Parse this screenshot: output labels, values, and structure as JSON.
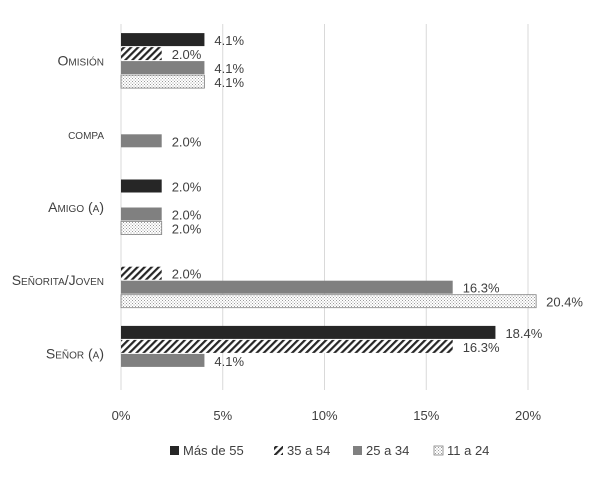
{
  "chart_data": {
    "type": "bar",
    "orientation": "horizontal",
    "title": "",
    "xlabel": "",
    "ylabel": "",
    "categories": [
      "Omisión",
      "compa",
      "Amigo (a)",
      "Señorita/Joven",
      "Señor (a)"
    ],
    "series": [
      {
        "name": "Más de 55",
        "values": [
          4.1,
          null,
          2.0,
          null,
          18.4
        ],
        "labels": [
          "4.1%",
          "",
          "2.0%",
          "",
          "18.4%"
        ],
        "color": "#262626",
        "pattern": "solid"
      },
      {
        "name": "35 a 54",
        "values": [
          2.0,
          null,
          null,
          2.0,
          16.3
        ],
        "labels": [
          "2.0%",
          "",
          "",
          "2.0%",
          "16.3%"
        ],
        "color": "#262626",
        "pattern": "diagonal-hatch"
      },
      {
        "name": "25 a 34",
        "values": [
          4.1,
          2.0,
          2.0,
          16.3,
          4.1
        ],
        "labels": [
          "4.1%",
          "2.0%",
          "2.0%",
          "16.3%",
          "4.1%"
        ],
        "color": "#808080",
        "pattern": "solid"
      },
      {
        "name": "11 a 24",
        "values": [
          4.1,
          null,
          2.0,
          20.4,
          null
        ],
        "labels": [
          "4.1%",
          "",
          "2.0%",
          "20.4%",
          ""
        ],
        "color": "#808080",
        "pattern": "dotted"
      }
    ],
    "xlim": [
      0,
      20
    ],
    "xticks": [
      0,
      5,
      10,
      15,
      20
    ],
    "xtick_labels": [
      "0%",
      "5%",
      "10%",
      "15%",
      "20%"
    ],
    "grid": "vertical",
    "legend_position": "bottom"
  }
}
